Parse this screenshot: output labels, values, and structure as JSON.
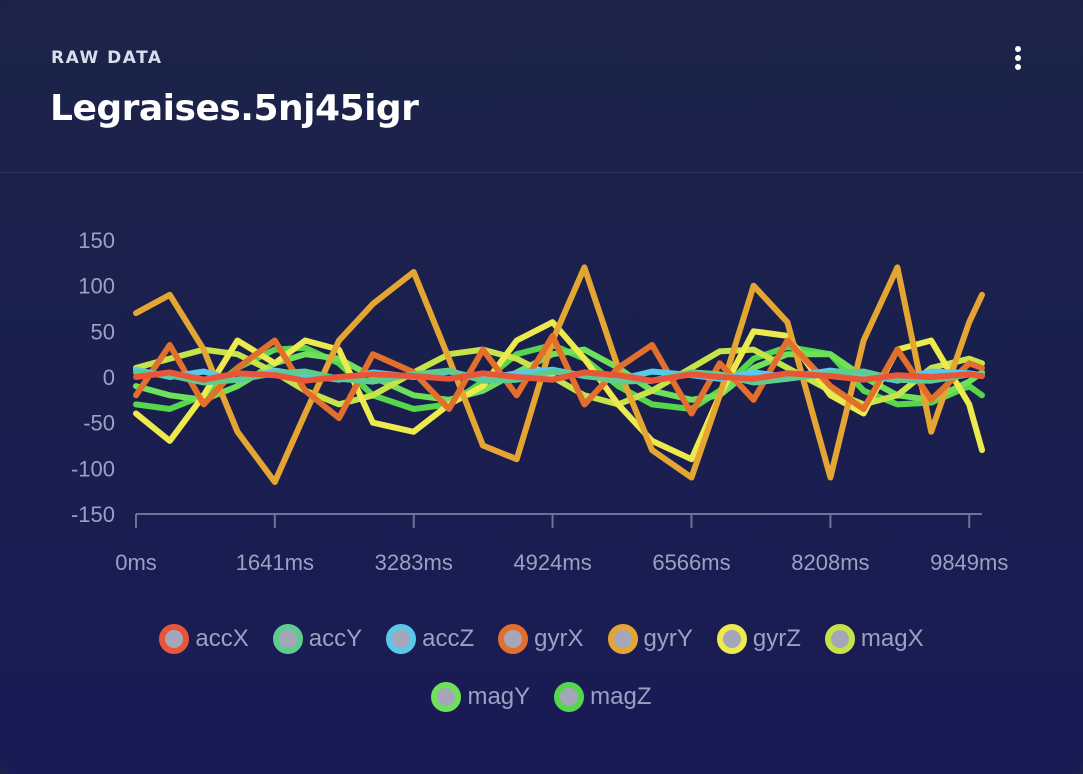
{
  "card": {
    "eyebrow": "RAW DATA",
    "title": "Legraises.5nj45igr",
    "menu_icon": "kebab-menu-icon"
  },
  "chart_data": {
    "type": "line",
    "title": "",
    "xlabel": "",
    "ylabel": "",
    "ylim": [
      -150,
      150
    ],
    "xlim": [
      0,
      10000
    ],
    "x_ticks": [
      "0ms",
      "1641ms",
      "3283ms",
      "4924ms",
      "6566ms",
      "8208ms",
      "9849ms"
    ],
    "x_tick_values": [
      0,
      1641,
      3283,
      4924,
      6566,
      8208,
      9849
    ],
    "y_ticks": [
      150,
      100,
      50,
      0,
      -50,
      -100,
      -150
    ],
    "grid": false,
    "legend_position": "bottom",
    "x": [
      0,
      400,
      800,
      1200,
      1641,
      2000,
      2400,
      2800,
      3283,
      3700,
      4100,
      4500,
      4924,
      5300,
      5700,
      6100,
      6566,
      6900,
      7300,
      7700,
      8208,
      8600,
      9000,
      9400,
      9849,
      10000
    ],
    "series": [
      {
        "name": "accX",
        "color": "#e8563a",
        "values": [
          0,
          5,
          -3,
          4,
          2,
          -4,
          0,
          3,
          1,
          -2,
          4,
          0,
          -3,
          5,
          2,
          -4,
          3,
          0,
          -2,
          4,
          1,
          -3,
          2,
          0,
          3,
          1
        ]
      },
      {
        "name": "accY",
        "color": "#5ecb8f",
        "values": [
          5,
          2,
          -6,
          -3,
          4,
          6,
          -2,
          -5,
          3,
          7,
          -4,
          -3,
          6,
          2,
          -5,
          -4,
          5,
          3,
          -6,
          -2,
          4,
          6,
          -3,
          -4,
          3,
          2
        ]
      },
      {
        "name": "accZ",
        "color": "#5ac8e8",
        "values": [
          8,
          0,
          6,
          -4,
          7,
          2,
          -3,
          5,
          0,
          6,
          -2,
          4,
          8,
          1,
          -3,
          6,
          2,
          -2,
          5,
          0,
          7,
          3,
          -4,
          6,
          4,
          2
        ]
      },
      {
        "name": "gyrX",
        "color": "#e36f2c",
        "values": [
          -20,
          35,
          -30,
          10,
          40,
          -15,
          -45,
          25,
          5,
          -35,
          30,
          -20,
          45,
          -30,
          10,
          35,
          -40,
          15,
          -25,
          40,
          -10,
          -35,
          30,
          -25,
          15,
          10
        ]
      },
      {
        "name": "gyrY",
        "color": "#e5a532",
        "values": [
          70,
          90,
          30,
          -60,
          -115,
          -40,
          40,
          80,
          115,
          20,
          -75,
          -90,
          40,
          120,
          10,
          -80,
          -110,
          -20,
          100,
          60,
          -110,
          40,
          120,
          -60,
          60,
          90
        ]
      },
      {
        "name": "gyrZ",
        "color": "#ecea4c",
        "values": [
          -40,
          -70,
          -20,
          40,
          15,
          40,
          30,
          -50,
          -60,
          -30,
          -10,
          40,
          60,
          20,
          -30,
          -70,
          -90,
          -20,
          50,
          45,
          -20,
          -40,
          30,
          40,
          -30,
          -80
        ]
      },
      {
        "name": "magX",
        "color": "#c7e34a",
        "values": [
          10,
          20,
          30,
          25,
          5,
          -15,
          -30,
          -20,
          5,
          25,
          30,
          20,
          0,
          -20,
          -30,
          -15,
          10,
          28,
          30,
          10,
          -15,
          -30,
          -20,
          10,
          20,
          15
        ]
      },
      {
        "name": "magY",
        "color": "#6fe05a",
        "values": [
          -10,
          -20,
          -25,
          -10,
          15,
          25,
          20,
          0,
          -20,
          -25,
          -15,
          5,
          25,
          30,
          10,
          -15,
          -25,
          -20,
          10,
          25,
          25,
          0,
          -20,
          -25,
          -5,
          5
        ]
      },
      {
        "name": "magZ",
        "color": "#55d64c",
        "values": [
          -30,
          -35,
          -20,
          10,
          30,
          32,
          15,
          -20,
          -35,
          -30,
          -5,
          25,
          35,
          20,
          -10,
          -30,
          -35,
          -15,
          20,
          33,
          25,
          -15,
          -30,
          -28,
          -10,
          -20
        ]
      }
    ]
  }
}
